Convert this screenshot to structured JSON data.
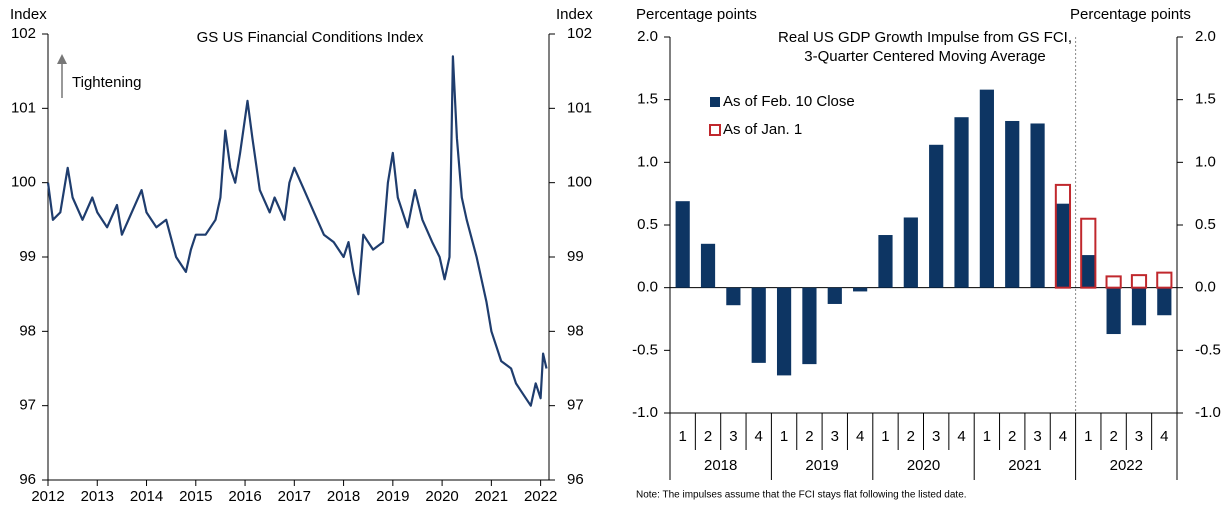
{
  "chart_data": [
    {
      "type": "line",
      "title": "GS US Financial Conditions Index",
      "y_label": "Index",
      "y2_label": "Index",
      "annotation": "Tightening",
      "xlim": [
        2012,
        2022.17
      ],
      "xticks": [
        2012,
        2013,
        2014,
        2015,
        2016,
        2017,
        2018,
        2019,
        2020,
        2021,
        2022
      ],
      "ylim": [
        96,
        102
      ],
      "yticks": [
        96,
        97,
        98,
        99,
        100,
        101,
        102
      ],
      "series": [
        {
          "name": "GS US Financial Conditions Index",
          "color": "#1f3d6e",
          "x": [
            2012.0,
            2012.1,
            2012.25,
            2012.4,
            2012.5,
            2012.7,
            2012.9,
            2013.0,
            2013.2,
            2013.4,
            2013.5,
            2013.7,
            2013.9,
            2014.0,
            2014.2,
            2014.4,
            2014.6,
            2014.8,
            2014.9,
            2015.0,
            2015.2,
            2015.4,
            2015.5,
            2015.6,
            2015.7,
            2015.8,
            2015.9,
            2016.05,
            2016.15,
            2016.3,
            2016.5,
            2016.6,
            2016.8,
            2016.9,
            2017.0,
            2017.2,
            2017.4,
            2017.6,
            2017.8,
            2018.0,
            2018.1,
            2018.2,
            2018.3,
            2018.4,
            2018.6,
            2018.8,
            2018.9,
            2019.0,
            2019.1,
            2019.3,
            2019.45,
            2019.6,
            2019.8,
            2019.95,
            2020.05,
            2020.15,
            2020.22,
            2020.3,
            2020.4,
            2020.5,
            2020.7,
            2020.8,
            2020.9,
            2021.0,
            2021.1,
            2021.2,
            2021.4,
            2021.5,
            2021.6,
            2021.7,
            2021.8,
            2021.9,
            2022.0,
            2022.05,
            2022.12
          ],
          "values": [
            100.0,
            99.5,
            99.6,
            100.2,
            99.8,
            99.5,
            99.8,
            99.6,
            99.4,
            99.7,
            99.3,
            99.6,
            99.9,
            99.6,
            99.4,
            99.5,
            99.0,
            98.8,
            99.1,
            99.3,
            99.3,
            99.5,
            99.8,
            100.7,
            100.2,
            100.0,
            100.4,
            101.1,
            100.6,
            99.9,
            99.6,
            99.8,
            99.5,
            100.0,
            100.2,
            99.9,
            99.6,
            99.3,
            99.2,
            99.0,
            99.2,
            98.8,
            98.5,
            99.3,
            99.1,
            99.2,
            100.0,
            100.4,
            99.8,
            99.4,
            99.9,
            99.5,
            99.2,
            99.0,
            98.7,
            99.0,
            101.7,
            100.6,
            99.8,
            99.5,
            99.0,
            98.7,
            98.4,
            98.0,
            97.8,
            97.6,
            97.5,
            97.3,
            97.2,
            97.1,
            97.0,
            97.3,
            97.1,
            97.7,
            97.5
          ]
        }
      ]
    },
    {
      "type": "bar",
      "title": [
        "Real US GDP Growth Impulse from GS FCI,",
        "3-Quarter Centered Moving Average"
      ],
      "y_label": "Percentage points",
      "y2_label": "Percentage points",
      "note": "Note: The impulses assume that the FCI stays flat following the listed date.",
      "categories": [
        "1",
        "2",
        "3",
        "4",
        "1",
        "2",
        "3",
        "4",
        "1",
        "2",
        "3",
        "4",
        "1",
        "2",
        "3",
        "4",
        "1",
        "2",
        "3",
        "4"
      ],
      "group_labels": [
        "2018",
        "2019",
        "2020",
        "2021",
        "2022"
      ],
      "ylim": [
        -1,
        2
      ],
      "yticks": [
        {
          "value": -1,
          "label": "-1.0"
        },
        -0.5,
        {
          "value": 0,
          "label": "0.0"
        },
        0.5,
        {
          "value": 1,
          "label": "1.0"
        },
        1.5,
        {
          "value": 2,
          "label": "2.0"
        }
      ],
      "legend": "upper left",
      "series": [
        {
          "name": "As of Feb. 10 Close",
          "color": "#0d3563",
          "style": "filled",
          "values": [
            0.69,
            0.35,
            -0.14,
            -0.6,
            -0.7,
            -0.61,
            -0.13,
            -0.03,
            0.42,
            0.56,
            1.14,
            1.36,
            1.58,
            1.33,
            1.31,
            0.67,
            0.26,
            -0.37,
            -0.3,
            -0.22
          ]
        },
        {
          "name": "As of Jan. 1",
          "color": "#c0282d",
          "style": "outline",
          "values": [
            null,
            null,
            null,
            null,
            null,
            null,
            null,
            null,
            null,
            null,
            null,
            null,
            null,
            null,
            null,
            0.82,
            0.55,
            0.09,
            0.1,
            0.12
          ]
        }
      ]
    }
  ]
}
